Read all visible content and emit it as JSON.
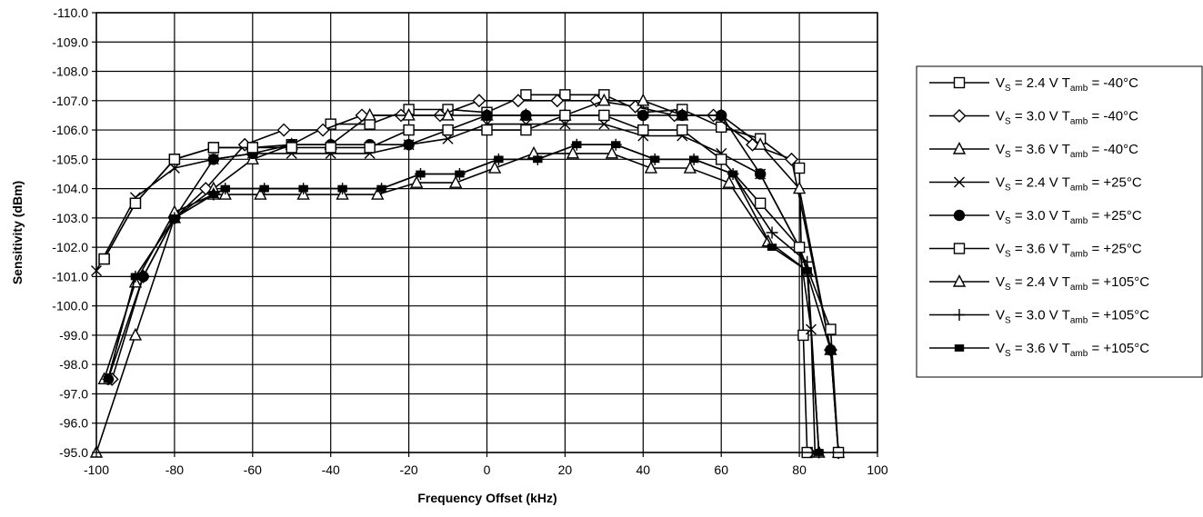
{
  "chart_data": {
    "type": "line",
    "title": "",
    "xlabel": "Frequency Offset (kHz)",
    "ylabel": "Sensitivity (dBm)",
    "xlim": [
      -100,
      100
    ],
    "ylim": [
      -95.0,
      -110.0
    ],
    "y_axis_inverted": true,
    "grid": true,
    "legend_position": "right",
    "x_ticks": [
      "-100",
      "-80",
      "-60",
      "-40",
      "-20",
      "0",
      "20",
      "40",
      "60",
      "80",
      "100"
    ],
    "y_ticks": [
      "-110.0",
      "-109.0",
      "-108.0",
      "-107.0",
      "-106.0",
      "-105.0",
      "-104.0",
      "-103.0",
      "-102.0",
      "-101.0",
      "-100.0",
      "-99.0",
      "-98.0",
      "-97.0",
      "-96.0",
      "-95.0"
    ],
    "series": [
      {
        "name": "VS = 2.4 V Tamb = -40°C",
        "legend": {
          "pre": "V",
          "sub1": "S",
          "mid": " = 2.4 V T",
          "sub2": "amb",
          "post": " = -40°C"
        },
        "marker": "square",
        "x": [
          -98,
          -90,
          -80,
          -70,
          -60,
          -50,
          -40,
          -30,
          -20,
          -10,
          0,
          10,
          20,
          30,
          40,
          50,
          60,
          70,
          80,
          81,
          82
        ],
        "y": [
          -101.6,
          -103.5,
          -105.0,
          -105.4,
          -105.4,
          -105.5,
          -106.2,
          -106.2,
          -106.7,
          -106.7,
          -106.6,
          -107.2,
          -107.2,
          -107.2,
          -106.6,
          -106.7,
          -106.1,
          -105.7,
          -104.7,
          -99.0,
          -95.0
        ]
      },
      {
        "name": "VS = 3.0 V Tamb = -40°C",
        "legend": {
          "pre": "V",
          "sub1": "S",
          "mid": " = 3.0 V T",
          "sub2": "amb",
          "post": " = -40°C"
        },
        "marker": "diamond",
        "x": [
          -96,
          -88,
          -80,
          -72,
          -62,
          -52,
          -42,
          -32,
          -22,
          -12,
          -2,
          8,
          18,
          28,
          38,
          48,
          58,
          68,
          78,
          88,
          90
        ],
        "y": [
          -97.5,
          -101.0,
          -103.0,
          -104.0,
          -105.5,
          -106.0,
          -106.0,
          -106.5,
          -106.5,
          -106.5,
          -107.0,
          -107.0,
          -107.0,
          -107.0,
          -106.8,
          -106.5,
          -106.5,
          -105.5,
          -105.0,
          -98.5,
          -95.0
        ]
      },
      {
        "name": "VS = 3.6 V Tamb = -40°C",
        "legend": {
          "pre": "V",
          "sub1": "S",
          "mid": " = 3.6 V T",
          "sub2": "amb",
          "post": " = -40°C"
        },
        "marker": "triangle",
        "x": [
          -100,
          -90,
          -80,
          -70,
          -60,
          -50,
          -40,
          -30,
          -20,
          -10,
          0,
          10,
          20,
          30,
          40,
          50,
          60,
          70,
          80,
          88,
          90
        ],
        "y": [
          -95.0,
          -99.0,
          -103.0,
          -104.0,
          -105.0,
          -105.5,
          -105.5,
          -106.5,
          -106.5,
          -106.5,
          -106.5,
          -106.5,
          -106.5,
          -107.0,
          -107.0,
          -106.5,
          -106.5,
          -105.5,
          -104.0,
          -98.5,
          -95.0
        ]
      },
      {
        "name": "VS = 2.4 V Tamb = +25°C",
        "legend": {
          "pre": "V",
          "sub1": "S",
          "mid": " = 2.4 V T",
          "sub2": "amb",
          "post": " = +25°C"
        },
        "marker": "x",
        "x": [
          -100,
          -90,
          -80,
          -70,
          -60,
          -50,
          -40,
          -30,
          -20,
          -10,
          0,
          10,
          20,
          30,
          40,
          50,
          60,
          70,
          80,
          83,
          84
        ],
        "y": [
          -101.2,
          -103.7,
          -104.7,
          -105.0,
          -105.2,
          -105.2,
          -105.2,
          -105.2,
          -105.5,
          -105.7,
          -106.2,
          -106.2,
          -106.2,
          -106.2,
          -105.8,
          -105.8,
          -105.2,
          -104.5,
          -102.0,
          -99.2,
          -95.0
        ]
      },
      {
        "name": "VS = 3.0 V Tamb = +25°C",
        "legend": {
          "pre": "V",
          "sub1": "S",
          "mid": " = 3.0 V T",
          "sub2": "amb",
          "post": " = +25°C"
        },
        "marker": "circle",
        "x": [
          -97,
          -88,
          -80,
          -70,
          -60,
          -50,
          -40,
          -30,
          -20,
          -10,
          0,
          10,
          20,
          30,
          40,
          50,
          60,
          70,
          80,
          88,
          90
        ],
        "y": [
          -97.5,
          -101.0,
          -103.0,
          -105.0,
          -105.2,
          -105.5,
          -105.5,
          -105.5,
          -105.5,
          -106.0,
          -106.5,
          -106.5,
          -106.5,
          -106.5,
          -106.5,
          -106.5,
          -106.5,
          -104.5,
          -102.0,
          -98.5,
          -95.0
        ]
      },
      {
        "name": "VS = 3.6 V Tamb = +25°C",
        "legend": {
          "pre": "V",
          "sub1": "S",
          "mid": " = 3.6 V T",
          "sub2": "amb",
          "post": " = +25°C"
        },
        "marker": "square",
        "x": [
          -98,
          -90,
          -80,
          -70,
          -60,
          -50,
          -40,
          -30,
          -20,
          -10,
          0,
          10,
          20,
          30,
          40,
          50,
          60,
          70,
          80,
          88,
          90
        ],
        "y": [
          -101.6,
          -103.5,
          -105.0,
          -105.4,
          -105.4,
          -105.4,
          -105.4,
          -105.4,
          -106.0,
          -106.0,
          -106.0,
          -106.0,
          -106.5,
          -106.5,
          -106.0,
          -106.0,
          -105.0,
          -103.5,
          -102.0,
          -99.2,
          -95.0
        ]
      },
      {
        "name": "VS = 2.4 V Tamb = +105°C",
        "legend": {
          "pre": "V",
          "sub1": "S",
          "mid": " = 2.4 V T",
          "sub2": "amb",
          "post": " = +105°C"
        },
        "marker": "triangle",
        "x": [
          -98,
          -90,
          -80,
          -70,
          -67,
          -58,
          -47,
          -37,
          -28,
          -18,
          -8,
          2,
          12,
          22,
          32,
          42,
          52,
          62,
          72,
          82,
          85
        ],
        "y": [
          -97.5,
          -100.8,
          -103.2,
          -103.8,
          -103.8,
          -103.8,
          -103.8,
          -103.8,
          -103.8,
          -104.2,
          -104.2,
          -104.7,
          -105.2,
          -105.2,
          -105.2,
          -104.7,
          -104.7,
          -104.2,
          -102.2,
          -101.2,
          -95.0
        ]
      },
      {
        "name": "VS = 3.0 V Tamb = +105°C",
        "legend": {
          "pre": "V",
          "sub1": "S",
          "mid": " = 3.0 V T",
          "sub2": "amb",
          "post": " = +105°C"
        },
        "marker": "plus",
        "x": [
          -97,
          -90,
          -80,
          -70,
          -67,
          -57,
          -47,
          -37,
          -27,
          -17,
          -7,
          3,
          13,
          23,
          33,
          43,
          53,
          63,
          73,
          82,
          85
        ],
        "y": [
          -97.5,
          -101.0,
          -103.0,
          -103.8,
          -104.0,
          -104.0,
          -104.0,
          -104.0,
          -104.0,
          -104.5,
          -104.5,
          -105.0,
          -105.0,
          -105.5,
          -105.5,
          -105.0,
          -105.0,
          -104.5,
          -102.5,
          -101.5,
          -95.0
        ]
      },
      {
        "name": "VS = 3.6 V Tamb = +105°C",
        "legend": {
          "pre": "V",
          "sub1": "S",
          "mid": " = 3.6 V T",
          "sub2": "amb",
          "post": " = +105°C"
        },
        "marker": "dash",
        "x": [
          -97,
          -90,
          -80,
          -70,
          -67,
          -57,
          -47,
          -37,
          -27,
          -17,
          -7,
          3,
          13,
          23,
          33,
          43,
          53,
          63,
          73,
          82,
          85
        ],
        "y": [
          -97.5,
          -101.0,
          -103.0,
          -103.8,
          -104.0,
          -104.0,
          -104.0,
          -104.0,
          -104.0,
          -104.5,
          -104.5,
          -105.0,
          -105.0,
          -105.5,
          -105.5,
          -105.0,
          -105.0,
          -104.5,
          -102.0,
          -101.2,
          -95.0
        ]
      }
    ]
  }
}
